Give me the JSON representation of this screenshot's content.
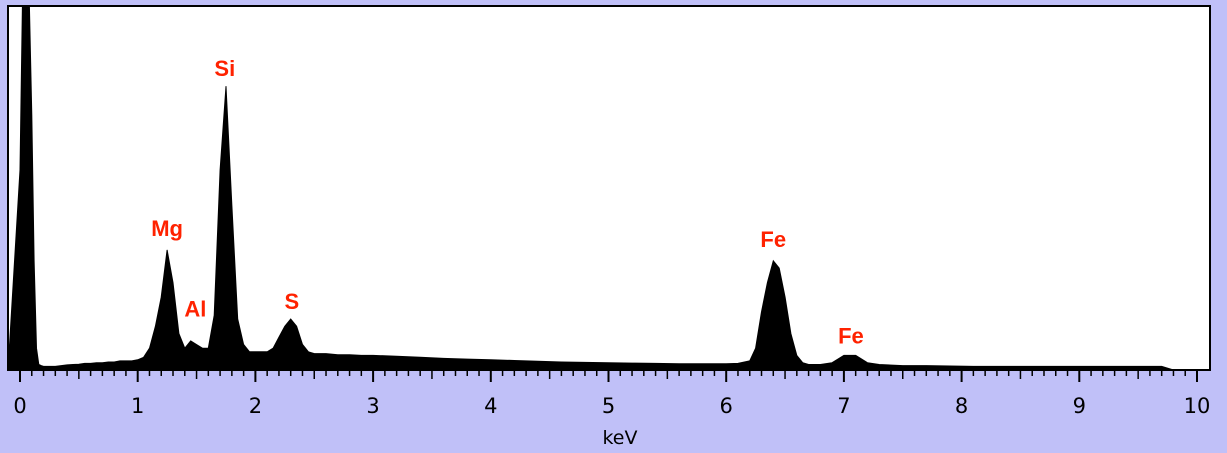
{
  "chart_data": {
    "type": "area",
    "xlabel": "keV",
    "ylabel": "",
    "xlim": [
      0,
      10
    ],
    "ylim": [
      0,
      100
    ],
    "x_ticks": [
      "0",
      "1",
      "2",
      "3",
      "4",
      "5",
      "6",
      "7",
      "8",
      "9",
      "10"
    ],
    "fill_color": "#000000",
    "plot_background": "#ffffff",
    "frame_background": "#c0c0f8",
    "label_color": "#ff2200",
    "grid": false,
    "legend": "none",
    "peak_labels": [
      {
        "text": "Mg",
        "x": 1.25,
        "y": 34
      },
      {
        "text": "Al",
        "x": 1.49,
        "y": 12
      },
      {
        "text": "Si",
        "x": 1.74,
        "y": 78
      },
      {
        "text": "S",
        "x": 2.31,
        "y": 14
      },
      {
        "text": "Fe",
        "x": 6.4,
        "y": 31
      },
      {
        "text": "Fe",
        "x": 7.06,
        "y": 4.5
      }
    ],
    "series": [
      {
        "x": [
          0.0,
          0.02,
          0.04,
          0.06,
          0.08,
          0.1,
          0.12,
          0.14,
          0.16,
          0.18,
          0.2,
          0.25,
          0.3,
          0.35,
          0.4,
          0.45,
          0.5,
          0.55,
          0.6,
          0.65,
          0.7,
          0.75,
          0.8,
          0.85,
          0.9,
          0.95,
          1.0,
          1.05,
          1.1,
          1.15,
          1.2,
          1.25,
          1.3,
          1.35,
          1.4,
          1.45,
          1.5,
          1.55,
          1.6,
          1.65,
          1.7,
          1.75,
          1.8,
          1.85,
          1.9,
          1.95,
          2.0,
          2.05,
          2.1,
          2.15,
          2.2,
          2.25,
          2.3,
          2.35,
          2.4,
          2.45,
          2.5,
          2.6,
          2.7,
          2.8,
          2.9,
          3.0,
          3.2,
          3.4,
          3.6,
          3.8,
          4.0,
          4.2,
          4.4,
          4.6,
          4.8,
          5.0,
          5.2,
          5.4,
          5.6,
          5.8,
          6.0,
          6.1,
          6.2,
          6.25,
          6.3,
          6.35,
          6.4,
          6.45,
          6.5,
          6.55,
          6.6,
          6.65,
          6.7,
          6.8,
          6.9,
          6.95,
          7.0,
          7.05,
          7.1,
          7.15,
          7.2,
          7.3,
          7.5,
          7.7,
          7.9,
          8.1,
          8.3,
          8.5,
          8.7,
          8.9,
          9.1,
          9.3,
          9.5,
          9.7,
          9.8
        ],
        "y": [
          55,
          100,
          100,
          100,
          100,
          70,
          30,
          6,
          1.5,
          1.2,
          1,
          1,
          1,
          1.2,
          1.4,
          1.5,
          1.6,
          1.8,
          1.8,
          2,
          2,
          2.2,
          2.2,
          2.5,
          2.5,
          2.5,
          2.8,
          3.5,
          6,
          12,
          20,
          33,
          24,
          10,
          6,
          8,
          7,
          6,
          6,
          15,
          55,
          78,
          45,
          14,
          7,
          5,
          5,
          5,
          5,
          6,
          9,
          12,
          14,
          12,
          7,
          5,
          4.5,
          4.5,
          4.2,
          4.2,
          4,
          4,
          3.8,
          3.5,
          3.2,
          3,
          2.8,
          2.6,
          2.4,
          2.2,
          2.1,
          2,
          1.9,
          1.8,
          1.7,
          1.7,
          1.7,
          1.8,
          2.5,
          6,
          16,
          24,
          30,
          28,
          20,
          10,
          4,
          2,
          1.5,
          1.5,
          2,
          3,
          4,
          4,
          4,
          3,
          2,
          1.5,
          1.2,
          1.2,
          1.1,
          1,
          1,
          1,
          1,
          1,
          1,
          1,
          1,
          1,
          0
        ]
      }
    ]
  }
}
